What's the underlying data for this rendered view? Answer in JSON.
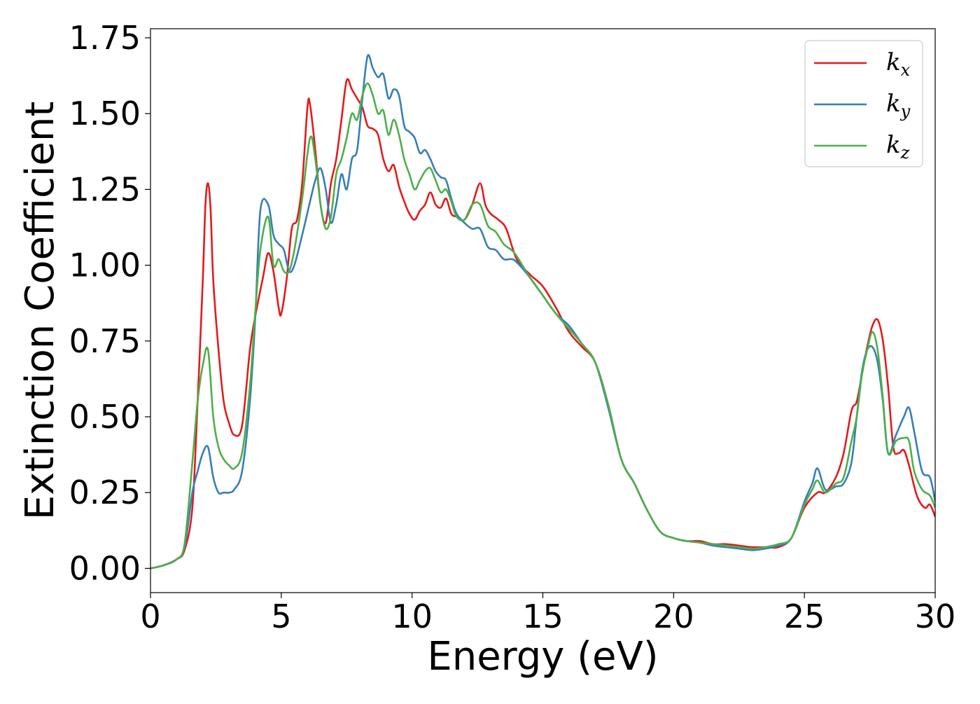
{
  "chart_data": {
    "type": "line",
    "xlabel": "Energy (eV)",
    "ylabel": "Extinction Coefficient",
    "xlim": [
      0,
      30
    ],
    "ylim": [
      -0.08,
      1.78
    ],
    "xticks": [
      0,
      5,
      10,
      15,
      20,
      25,
      30
    ],
    "xtick_labels": [
      "0",
      "5",
      "10",
      "15",
      "20",
      "25",
      "30"
    ],
    "yticks": [
      0.0,
      0.25,
      0.5,
      0.75,
      1.0,
      1.25,
      1.5,
      1.75
    ],
    "ytick_labels": [
      "0.00",
      "0.25",
      "0.50",
      "0.75",
      "1.00",
      "1.25",
      "1.50",
      "1.75"
    ],
    "grid": false,
    "legend_position": "top-right",
    "series": [
      {
        "name": "k_x",
        "label_base": "k",
        "label_sub": "x",
        "color": "#e41a1c",
        "x": [
          0,
          0.5,
          1.0,
          1.3,
          1.6,
          1.8,
          2.0,
          2.1,
          2.2,
          2.3,
          2.4,
          2.6,
          2.8,
          3.0,
          3.2,
          3.5,
          3.8,
          4.0,
          4.3,
          4.5,
          4.7,
          4.9,
          5.0,
          5.2,
          5.4,
          5.6,
          5.8,
          6.0,
          6.1,
          6.3,
          6.5,
          6.7,
          6.9,
          7.1,
          7.3,
          7.5,
          7.7,
          7.9,
          8.1,
          8.3,
          8.5,
          8.7,
          8.9,
          9.1,
          9.3,
          9.5,
          9.7,
          9.9,
          10.1,
          10.3,
          10.5,
          10.7,
          10.9,
          11.1,
          11.3,
          11.5,
          11.7,
          12.0,
          12.3,
          12.6,
          12.8,
          13.0,
          13.3,
          13.6,
          14.0,
          14.5,
          15.0,
          15.5,
          16.0,
          16.5,
          17.0,
          17.5,
          18.0,
          18.5,
          19.0,
          19.5,
          20.0,
          20.5,
          21.0,
          21.5,
          22.0,
          22.5,
          23.0,
          23.5,
          24.0,
          24.5,
          25.0,
          25.5,
          25.8,
          26.2,
          26.5,
          26.8,
          27.0,
          27.2,
          27.4,
          27.6,
          27.8,
          28.0,
          28.2,
          28.4,
          28.6,
          28.8,
          29.0,
          29.3,
          29.6,
          29.8,
          30.0
        ],
        "y": [
          0.0,
          0.01,
          0.03,
          0.06,
          0.2,
          0.55,
          0.95,
          1.2,
          1.27,
          1.18,
          0.95,
          0.72,
          0.55,
          0.48,
          0.44,
          0.47,
          0.72,
          0.83,
          0.96,
          1.04,
          0.98,
          0.86,
          0.84,
          0.95,
          1.12,
          1.15,
          1.27,
          1.52,
          1.53,
          1.38,
          1.2,
          1.14,
          1.27,
          1.35,
          1.48,
          1.61,
          1.58,
          1.55,
          1.52,
          1.46,
          1.45,
          1.43,
          1.35,
          1.31,
          1.33,
          1.26,
          1.21,
          1.17,
          1.15,
          1.18,
          1.2,
          1.24,
          1.2,
          1.19,
          1.22,
          1.17,
          1.16,
          1.15,
          1.2,
          1.27,
          1.2,
          1.17,
          1.15,
          1.12,
          1.02,
          0.97,
          0.93,
          0.86,
          0.78,
          0.73,
          0.68,
          0.54,
          0.36,
          0.28,
          0.19,
          0.12,
          0.1,
          0.09,
          0.09,
          0.08,
          0.08,
          0.075,
          0.07,
          0.07,
          0.07,
          0.1,
          0.2,
          0.25,
          0.25,
          0.3,
          0.38,
          0.52,
          0.55,
          0.64,
          0.73,
          0.8,
          0.82,
          0.75,
          0.6,
          0.4,
          0.38,
          0.39,
          0.34,
          0.24,
          0.2,
          0.21,
          0.17
        ]
      },
      {
        "name": "k_y",
        "label_base": "k",
        "label_sub": "y",
        "color": "#377eb8",
        "x": [
          0,
          0.5,
          1.0,
          1.3,
          1.6,
          1.8,
          2.0,
          2.2,
          2.4,
          2.6,
          2.8,
          3.0,
          3.2,
          3.5,
          3.8,
          4.0,
          4.2,
          4.5,
          4.7,
          4.9,
          5.1,
          5.3,
          5.5,
          5.8,
          6.1,
          6.3,
          6.5,
          6.7,
          6.9,
          7.1,
          7.3,
          7.5,
          7.7,
          7.9,
          8.1,
          8.3,
          8.5,
          8.7,
          8.9,
          9.1,
          9.3,
          9.5,
          9.7,
          9.9,
          10.1,
          10.3,
          10.5,
          10.7,
          10.9,
          11.1,
          11.3,
          11.5,
          11.7,
          12.0,
          12.3,
          12.6,
          12.9,
          13.2,
          13.5,
          13.8,
          14.0,
          14.5,
          15.0,
          15.5,
          16.0,
          16.5,
          17.0,
          17.5,
          18.0,
          18.5,
          19.0,
          19.5,
          20.0,
          20.5,
          21.0,
          21.5,
          22.0,
          22.5,
          23.0,
          23.5,
          24.0,
          24.5,
          25.0,
          25.3,
          25.5,
          25.8,
          26.2,
          26.5,
          26.8,
          27.0,
          27.2,
          27.4,
          27.6,
          27.8,
          28.0,
          28.2,
          28.5,
          28.8,
          29.0,
          29.2,
          29.5,
          29.8,
          30.0
        ],
        "y": [
          0.0,
          0.01,
          0.03,
          0.07,
          0.25,
          0.32,
          0.38,
          0.4,
          0.3,
          0.25,
          0.25,
          0.25,
          0.26,
          0.32,
          0.55,
          0.82,
          1.18,
          1.2,
          1.1,
          1.07,
          1.05,
          0.98,
          1.0,
          1.1,
          1.21,
          1.28,
          1.32,
          1.25,
          1.14,
          1.2,
          1.3,
          1.25,
          1.35,
          1.38,
          1.55,
          1.69,
          1.65,
          1.62,
          1.63,
          1.55,
          1.58,
          1.56,
          1.46,
          1.44,
          1.42,
          1.37,
          1.38,
          1.35,
          1.31,
          1.29,
          1.28,
          1.22,
          1.17,
          1.14,
          1.12,
          1.12,
          1.06,
          1.05,
          1.02,
          1.02,
          1.01,
          0.96,
          0.9,
          0.84,
          0.8,
          0.74,
          0.68,
          0.53,
          0.36,
          0.28,
          0.19,
          0.12,
          0.1,
          0.09,
          0.085,
          0.075,
          0.07,
          0.065,
          0.06,
          0.065,
          0.075,
          0.1,
          0.22,
          0.28,
          0.33,
          0.26,
          0.27,
          0.28,
          0.35,
          0.5,
          0.65,
          0.72,
          0.73,
          0.68,
          0.55,
          0.38,
          0.44,
          0.5,
          0.53,
          0.45,
          0.32,
          0.3,
          0.22
        ]
      },
      {
        "name": "k_z",
        "label_base": "k",
        "label_sub": "z",
        "color": "#4daf4a",
        "x": [
          0,
          0.5,
          1.0,
          1.3,
          1.6,
          1.8,
          2.0,
          2.2,
          2.4,
          2.6,
          2.8,
          3.0,
          3.2,
          3.5,
          3.8,
          4.0,
          4.2,
          4.5,
          4.7,
          4.9,
          5.1,
          5.3,
          5.5,
          5.8,
          6.1,
          6.3,
          6.5,
          6.7,
          6.9,
          7.1,
          7.3,
          7.5,
          7.7,
          7.9,
          8.1,
          8.3,
          8.5,
          8.7,
          8.9,
          9.1,
          9.3,
          9.5,
          9.7,
          9.9,
          10.1,
          10.3,
          10.5,
          10.7,
          10.9,
          11.1,
          11.3,
          11.5,
          11.7,
          12.0,
          12.3,
          12.6,
          12.9,
          13.2,
          13.5,
          13.8,
          14.0,
          14.5,
          15.0,
          15.5,
          16.0,
          16.5,
          17.0,
          17.5,
          18.0,
          18.5,
          19.0,
          19.5,
          20.0,
          20.5,
          21.0,
          21.5,
          22.0,
          22.5,
          23.0,
          23.5,
          24.0,
          24.5,
          25.0,
          25.3,
          25.5,
          25.8,
          26.2,
          26.5,
          26.8,
          27.0,
          27.2,
          27.4,
          27.6,
          27.8,
          28.0,
          28.2,
          28.5,
          28.8,
          29.0,
          29.2,
          29.5,
          29.8,
          30.0
        ],
        "y": [
          0.0,
          0.01,
          0.03,
          0.08,
          0.35,
          0.55,
          0.67,
          0.72,
          0.5,
          0.4,
          0.36,
          0.34,
          0.33,
          0.38,
          0.6,
          0.84,
          1.05,
          1.16,
          1.0,
          1.02,
          0.98,
          0.98,
          1.05,
          1.22,
          1.42,
          1.35,
          1.2,
          1.12,
          1.16,
          1.3,
          1.35,
          1.42,
          1.5,
          1.48,
          1.56,
          1.6,
          1.56,
          1.5,
          1.51,
          1.43,
          1.48,
          1.43,
          1.35,
          1.3,
          1.25,
          1.28,
          1.31,
          1.32,
          1.28,
          1.24,
          1.25,
          1.21,
          1.16,
          1.15,
          1.2,
          1.2,
          1.13,
          1.11,
          1.07,
          1.05,
          1.03,
          0.96,
          0.9,
          0.84,
          0.79,
          0.74,
          0.68,
          0.54,
          0.36,
          0.28,
          0.19,
          0.12,
          0.1,
          0.09,
          0.085,
          0.08,
          0.075,
          0.07,
          0.065,
          0.07,
          0.08,
          0.1,
          0.21,
          0.26,
          0.29,
          0.25,
          0.28,
          0.3,
          0.42,
          0.5,
          0.64,
          0.72,
          0.78,
          0.72,
          0.56,
          0.38,
          0.42,
          0.43,
          0.42,
          0.32,
          0.26,
          0.24,
          0.2
        ]
      }
    ]
  }
}
